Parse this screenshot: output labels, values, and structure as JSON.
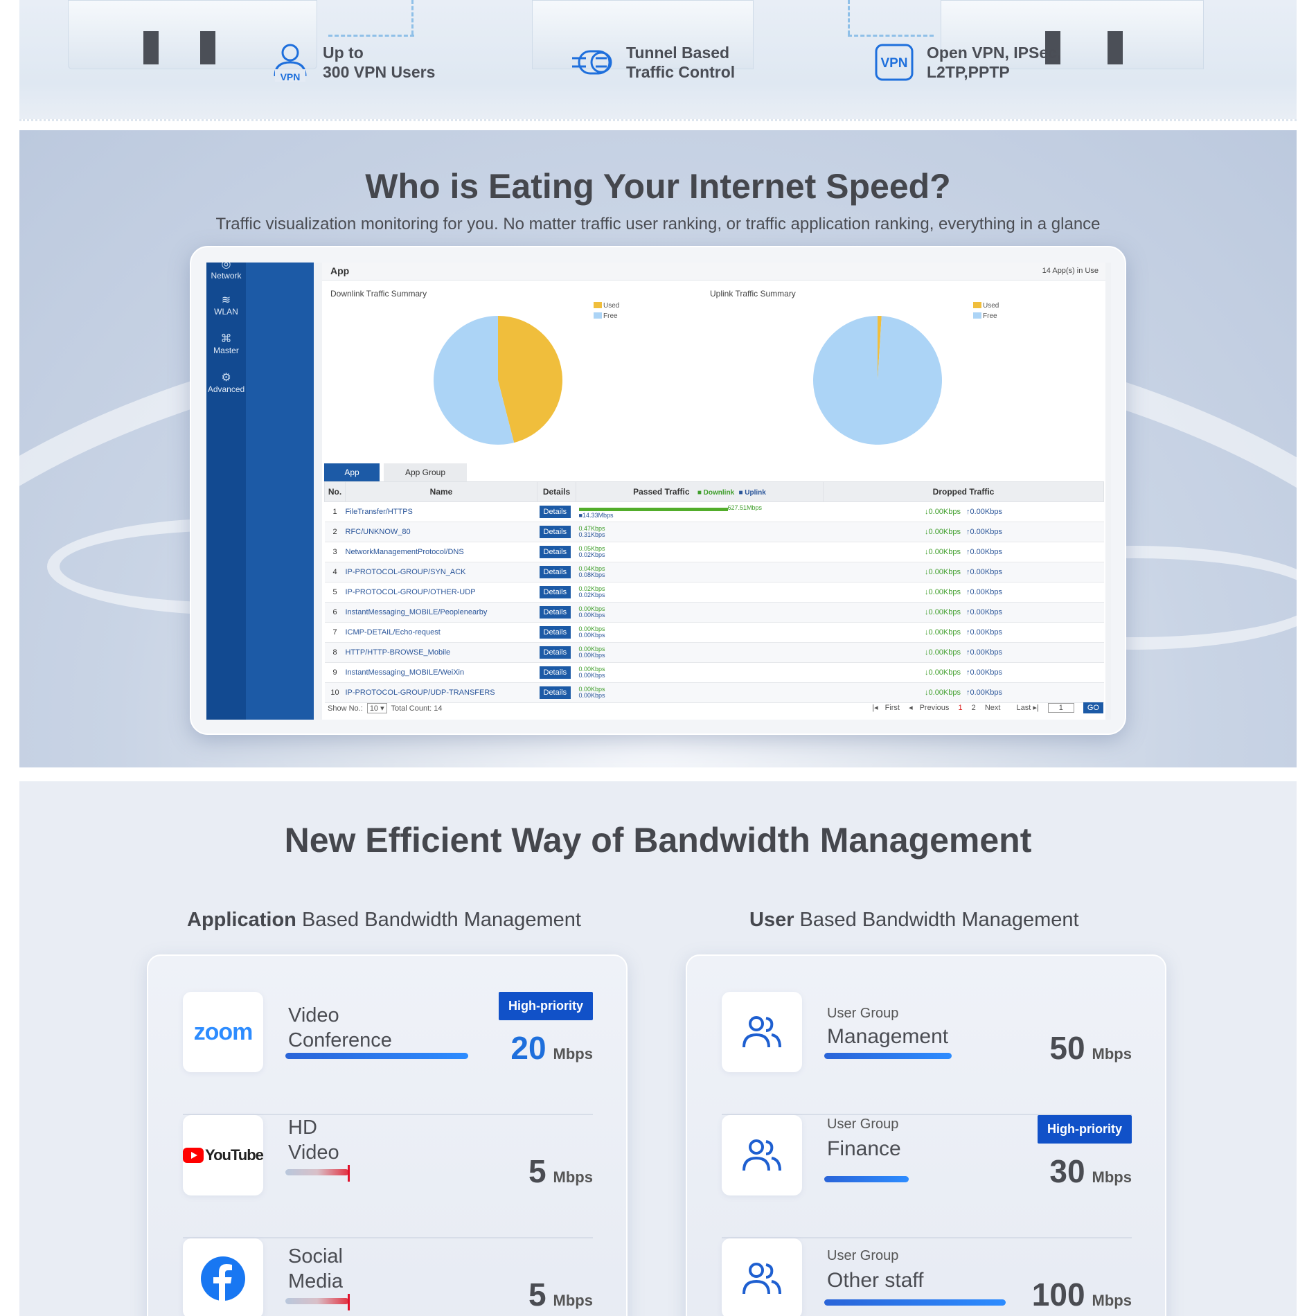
{
  "features": [
    {
      "line1": "Up to",
      "line2": "300 VPN Users",
      "icon": "user-vpn-icon",
      "icon_text": "VPN"
    },
    {
      "line1": "Tunnel Based",
      "line2": "Traffic Control",
      "icon": "tunnel-icon"
    },
    {
      "line1": "Open VPN, IPSec,",
      "line2": "L2TP,PPTP",
      "icon": "vpn-badge-icon",
      "icon_text": "VPN"
    }
  ],
  "traffic_section": {
    "title": "Who is Eating Your Internet Speed?",
    "subtitle": "Traffic visualization monitoring for you. No matter traffic user ranking, or traffic application ranking, everything in a glance"
  },
  "screen": {
    "sidebar": [
      {
        "label": "Network",
        "icon": "globe-icon"
      },
      {
        "label": "WLAN",
        "icon": "wifi-icon"
      },
      {
        "label": "Master",
        "icon": "hierarchy-icon"
      },
      {
        "label": "Advanced",
        "icon": "gear-icon"
      }
    ],
    "header": {
      "title": "App",
      "count": "14 App(s) in Use"
    },
    "downlink": {
      "title": "Downlink Traffic Summary",
      "used_label": "Used",
      "free_label": "Free"
    },
    "uplink": {
      "title": "Uplink Traffic Summary",
      "used_label": "Used",
      "free_label": "Free"
    },
    "tabs": [
      "App",
      "App Group"
    ],
    "columns": {
      "no": "No.",
      "name": "Name",
      "details": "Details",
      "passed": "Passed Traffic",
      "passed_dl": "Downlink",
      "passed_ul": "Uplink",
      "dropped": "Dropped Traffic"
    },
    "details_label": "Details",
    "rows": [
      {
        "no": "1",
        "name": "FileTransfer/HTTPS",
        "dl": "627.51Mbps",
        "ul": "14.33Mbps",
        "drop_dl": "↓0.00Kbps",
        "drop_ul": "↑0.00Kbps"
      },
      {
        "no": "2",
        "name": "RFC/UNKNOW_80",
        "dl": "0.47Kbps",
        "ul": "0.31Kbps",
        "drop_dl": "↓0.00Kbps",
        "drop_ul": "↑0.00Kbps"
      },
      {
        "no": "3",
        "name": "NetworkManagementProtocol/DNS",
        "dl": "0.05Kbps",
        "ul": "0.02Kbps",
        "drop_dl": "↓0.00Kbps",
        "drop_ul": "↑0.00Kbps"
      },
      {
        "no": "4",
        "name": "IP-PROTOCOL-GROUP/SYN_ACK",
        "dl": "0.04Kbps",
        "ul": "0.08Kbps",
        "drop_dl": "↓0.00Kbps",
        "drop_ul": "↑0.00Kbps"
      },
      {
        "no": "5",
        "name": "IP-PROTOCOL-GROUP/OTHER-UDP",
        "dl": "0.02Kbps",
        "ul": "0.02Kbps",
        "drop_dl": "↓0.00Kbps",
        "drop_ul": "↑0.00Kbps"
      },
      {
        "no": "6",
        "name": "InstantMessaging_MOBILE/Peoplenearby",
        "dl": "0.00Kbps",
        "ul": "0.00Kbps",
        "drop_dl": "↓0.00Kbps",
        "drop_ul": "↑0.00Kbps"
      },
      {
        "no": "7",
        "name": "ICMP-DETAIL/Echo-request",
        "dl": "0.00Kbps",
        "ul": "0.00Kbps",
        "drop_dl": "↓0.00Kbps",
        "drop_ul": "↑0.00Kbps"
      },
      {
        "no": "8",
        "name": "HTTP/HTTP-BROWSE_Mobile",
        "dl": "0.00Kbps",
        "ul": "0.00Kbps",
        "drop_dl": "↓0.00Kbps",
        "drop_ul": "↑0.00Kbps"
      },
      {
        "no": "9",
        "name": "InstantMessaging_MOBILE/WeiXin",
        "dl": "0.00Kbps",
        "ul": "0.00Kbps",
        "drop_dl": "↓0.00Kbps",
        "drop_ul": "↑0.00Kbps"
      },
      {
        "no": "10",
        "name": "IP-PROTOCOL-GROUP/UDP-TRANSFERS",
        "dl": "0.00Kbps",
        "ul": "0.00Kbps",
        "drop_dl": "↓0.00Kbps",
        "drop_ul": "↑0.00Kbps"
      }
    ],
    "footer": {
      "show_label": "Show No.:",
      "show_value": "10",
      "total": "Total Count: 14",
      "first": "First",
      "previous": "Previous",
      "page1": "1",
      "page2": "2",
      "next": "Next",
      "last": "Last",
      "page_input": "1",
      "go": "GO"
    }
  },
  "chart_data": [
    {
      "type": "pie",
      "title": "Downlink Traffic Summary",
      "labels": [
        "Used",
        "Free"
      ],
      "values": [
        46,
        54
      ],
      "colors": [
        "#f0be3c",
        "#acd4f6"
      ]
    },
    {
      "type": "pie",
      "title": "Uplink Traffic Summary",
      "labels": [
        "Used",
        "Free"
      ],
      "values": [
        1,
        99
      ],
      "colors": [
        "#f0be3c",
        "#acd4f6"
      ]
    }
  ],
  "bandwidth_section": {
    "title": "New Efficient Way of Bandwidth Management",
    "app_col": {
      "bold": "Application",
      "rest": " Based Bandwidth Management"
    },
    "user_col": {
      "bold": "User",
      "rest": " Based Bandwidth Management"
    },
    "apps": [
      {
        "logo": "zoom-logo-icon",
        "logo_text": "zoom",
        "line1": "Video",
        "line2": "Conference",
        "speed": "20",
        "unit": "Mbps",
        "badge": "High-priority",
        "level": 1.0
      },
      {
        "logo": "youtube-logo-icon",
        "logo_text": "YouTube",
        "line1": "HD",
        "line2": "Video",
        "speed": "5",
        "unit": "Mbps",
        "level": 0.35
      },
      {
        "logo": "facebook-logo-icon",
        "line1": "Social",
        "line2": "Media",
        "speed": "5",
        "unit": "Mbps",
        "level": 0.35
      }
    ],
    "users": [
      {
        "small": "User Group",
        "name": "Management",
        "speed": "50",
        "unit": "Mbps",
        "level": 0.5
      },
      {
        "small": "User Group",
        "name": "Finance",
        "speed": "30",
        "unit": "Mbps",
        "badge": "High-priority",
        "level": 0.3
      },
      {
        "small": "User Group",
        "name": "Other staff",
        "speed": "100",
        "unit": "Mbps",
        "level": 1.0
      }
    ]
  },
  "colors": {
    "accent": "#1151c8",
    "brand_blue": "#1c5aa6",
    "title_gray": "#45474d"
  }
}
